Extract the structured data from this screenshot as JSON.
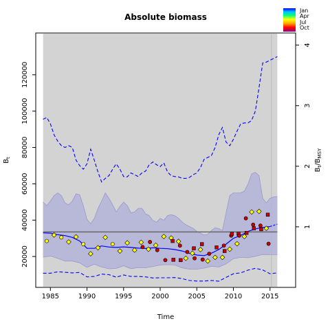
{
  "chart_data": {
    "type": "line",
    "title": "Absolute biomass",
    "xlabel": "Time",
    "ylabel": "B_t",
    "ylabel_right": "B_t/B_MSY",
    "xlim": [
      1983,
      2018.5
    ],
    "ylim": [
      3000,
      143000
    ],
    "ylim_right": [
      0,
      4.2
    ],
    "x_ticks": [
      1985,
      1990,
      1995,
      2000,
      2005,
      2010,
      2015
    ],
    "y_ticks": [
      20000,
      40000,
      60000,
      80000,
      100000,
      120000
    ],
    "y_ticks_right": [
      1,
      2,
      3,
      4
    ],
    "grid": false,
    "colors": {
      "shaded_panel": "#d3d3d3",
      "ci_band": "#b3b3d9",
      "ci_band_edge": "#9999cc",
      "median_line": "#0000ff",
      "ci_lines": "#0000ff",
      "bmsy_line": "#666666",
      "marker_edge": "#000000"
    },
    "legend": {
      "position": "top-right",
      "entries": [
        "Jan",
        "Apr",
        "Jul",
        "Oct"
      ],
      "gradient": [
        "#0000ff",
        "#00bfff",
        "#00ff80",
        "#ffff00",
        "#ffa500",
        "#ff0000",
        "#8b008b"
      ]
    },
    "shade_range_x": [
      1984,
      2016
    ],
    "forecast_start_x": 2015.2,
    "bmsy": 33500,
    "bmsy_ratio_scale": 33500,
    "median": {
      "x": [
        1984,
        1985,
        1986,
        1987,
        1988,
        1989,
        1990,
        1991,
        1992,
        1993,
        1994,
        1995,
        1996,
        1997,
        1998,
        1999,
        2000,
        2001,
        2002,
        2003,
        2004,
        2005,
        2006,
        2007,
        2008,
        2009,
        2010,
        2011,
        2012,
        2013,
        2014,
        2015
      ],
      "y": [
        33000,
        32800,
        32000,
        31500,
        30500,
        28500,
        24500,
        24500,
        25800,
        25200,
        25000,
        25300,
        25000,
        24600,
        24400,
        24800,
        24500,
        24300,
        23800,
        23000,
        21700,
        20800,
        20500,
        21800,
        23800,
        26800,
        30000,
        31600,
        33800,
        35200,
        36000,
        36500
      ]
    },
    "median_forecast": {
      "x": [
        2015,
        2016
      ],
      "y": [
        36500,
        37800
      ]
    },
    "ci_upper": {
      "x": [
        1984,
        1984.5,
        1985,
        1985.5,
        1986,
        1986.5,
        1987,
        1987.5,
        1988,
        1988.5,
        1989,
        1989.5,
        1990,
        1990.5,
        1991,
        1991.5,
        1992,
        1992.5,
        1993,
        1993.5,
        1994,
        1994.5,
        1995,
        1995.5,
        1996,
        1996.5,
        1997,
        1997.5,
        1998,
        1998.5,
        1999,
        1999.5,
        2000,
        2000.5,
        2001,
        2001.5,
        2002,
        2002.5,
        2003,
        2003.5,
        2004,
        2004.5,
        2005,
        2005.5,
        2006,
        2006.5,
        2007,
        2007.5,
        2008,
        2008.5,
        2009,
        2009.5,
        2010,
        2010.5,
        2011,
        2011.5,
        2012,
        2012.5,
        2013,
        2013.5,
        2014,
        2014.5,
        2015
      ],
      "y": [
        50000,
        48000,
        50500,
        53500,
        55000,
        53500,
        49500,
        48500,
        50500,
        54500,
        54000,
        48000,
        40500,
        38000,
        41000,
        46500,
        50500,
        55000,
        52000,
        48500,
        44500,
        47500,
        50000,
        48000,
        44000,
        44500,
        46500,
        46500,
        43500,
        42500,
        39800,
        38900,
        41000,
        40000,
        42500,
        43000,
        42500,
        41000,
        39000,
        37500,
        36500,
        35500,
        33800,
        32800,
        31800,
        32200,
        34300,
        35800,
        35300,
        34300,
        44000,
        53500,
        55000,
        55000,
        55000,
        56000,
        60000,
        65500,
        66300,
        64500,
        52000,
        49500,
        52000
      ]
    },
    "ci_upper_forecast": {
      "x": [
        2015,
        2015.5,
        2016
      ],
      "y": [
        52000,
        52800,
        53000
      ]
    },
    "ci_lower": {
      "x": [
        1984,
        1985,
        1986,
        1987,
        1988,
        1989,
        1990,
        1991,
        1992,
        1993,
        1994,
        1995,
        1996,
        1997,
        1998,
        1999,
        2000,
        2001,
        2002,
        2003,
        2004,
        2005,
        2006,
        2007,
        2008,
        2009,
        2010,
        2011,
        2012,
        2013,
        2014,
        2015
      ],
      "y": [
        19600,
        20300,
        19000,
        17500,
        17500,
        16500,
        14000,
        15800,
        14200,
        13200,
        13500,
        14900,
        13300,
        13900,
        13800,
        14500,
        15300,
        15500,
        15300,
        13700,
        13000,
        13000,
        13600,
        14600,
        14200,
        15900,
        18800,
        19500,
        19300,
        20100,
        21100,
        21000
      ]
    },
    "ci_lower_forecast": {
      "x": [
        2015,
        2016
      ],
      "y": [
        21000,
        21000
      ]
    },
    "ci_upper_dashed": {
      "x": [
        1984,
        1984.5,
        1985,
        1985.5,
        1986,
        1986.5,
        1987,
        1987.5,
        1988,
        1988.5,
        1989,
        1989.5,
        1990,
        1990.5,
        1991,
        1991.5,
        1992,
        1992.5,
        1993,
        1993.5,
        1994,
        1994.5,
        1995,
        1995.5,
        1996,
        1996.5,
        1997,
        1997.5,
        1998,
        1998.5,
        1999,
        1999.5,
        2000,
        2000.5,
        2001,
        2001.5,
        2002,
        2002.5,
        2003,
        2003.5,
        2004,
        2004.5,
        2005,
        2005.5,
        2006,
        2006.5,
        2007,
        2007.5,
        2008,
        2008.5,
        2009,
        2009.5,
        2010,
        2010.5,
        2011,
        2011.5,
        2012,
        2012.5,
        2013,
        2013.5,
        2014,
        2014.5,
        2015,
        2015.5,
        2016
      ],
      "y": [
        95500,
        96500,
        93000,
        87000,
        83500,
        81000,
        80000,
        81000,
        80000,
        73000,
        70000,
        68000,
        71000,
        79000,
        73000,
        66500,
        61000,
        63000,
        64500,
        68000,
        71000,
        68000,
        64000,
        63800,
        66000,
        65000,
        64000,
        66000,
        67000,
        70500,
        72000,
        70500,
        69500,
        71500,
        66500,
        64500,
        64000,
        63800,
        63000,
        63000,
        63500,
        65000,
        66000,
        69000,
        73500,
        74500,
        75500,
        80000,
        87000,
        91000,
        83000,
        81000,
        84500,
        89000,
        93000,
        93500,
        93500,
        95000,
        100000,
        113000,
        126500,
        127000,
        128000,
        129000,
        130000
      ]
    },
    "ci_lower_dashed": {
      "x": [
        1984,
        1985,
        1986,
        1987,
        1988,
        1989,
        1990,
        1991,
        1992,
        1993,
        1994,
        1995,
        1996,
        1997,
        1998,
        1999,
        2000,
        2001,
        2002,
        2003,
        2004,
        2005,
        2006,
        2007,
        2008,
        2009,
        2010,
        2011,
        2012,
        2013,
        2014,
        2015,
        2016
      ],
      "y": [
        10800,
        10800,
        11600,
        11300,
        11000,
        11200,
        8800,
        9000,
        10300,
        10000,
        8600,
        9800,
        9000,
        9000,
        8800,
        8200,
        8300,
        8300,
        8400,
        7800,
        6800,
        6500,
        6500,
        6800,
        6400,
        8500,
        10500,
        11000,
        12500,
        13500,
        12600,
        10500,
        11000
      ]
    },
    "observations": [
      {
        "x": 1984.5,
        "y": 28500,
        "shape": "circle",
        "color": "#ffff00"
      },
      {
        "x": 1985.5,
        "y": 31800,
        "shape": "diamond",
        "color": "#ffff00"
      },
      {
        "x": 1986.5,
        "y": 30500,
        "shape": "circle",
        "color": "#ffff00"
      },
      {
        "x": 1987.5,
        "y": 28000,
        "shape": "diamond",
        "color": "#ffff00"
      },
      {
        "x": 1988.5,
        "y": 30800,
        "shape": "diamond",
        "color": "#ffff00"
      },
      {
        "x": 1989.5,
        "y": 26800,
        "shape": "circle",
        "color": "#ffff00"
      },
      {
        "x": 1990.5,
        "y": 21500,
        "shape": "diamond",
        "color": "#ffff00"
      },
      {
        "x": 1991.5,
        "y": 24800,
        "shape": "diamond",
        "color": "#ffff00"
      },
      {
        "x": 1992.5,
        "y": 30500,
        "shape": "diamond",
        "color": "#ffff00"
      },
      {
        "x": 1993.5,
        "y": 26800,
        "shape": "circle",
        "color": "#ffff00"
      },
      {
        "x": 1994.5,
        "y": 23000,
        "shape": "diamond",
        "color": "#ffff00"
      },
      {
        "x": 1995.5,
        "y": 27500,
        "shape": "diamond",
        "color": "#ffff00"
      },
      {
        "x": 1996.5,
        "y": 23500,
        "shape": "diamond",
        "color": "#ffff00"
      },
      {
        "x": 1997.4,
        "y": 27800,
        "shape": "diamond",
        "color": "#ffff00"
      },
      {
        "x": 1997.6,
        "y": 25200,
        "shape": "circle",
        "color": "#cc0000"
      },
      {
        "x": 1998.4,
        "y": 24000,
        "shape": "diamond",
        "color": "#ffff00"
      },
      {
        "x": 1998.6,
        "y": 28000,
        "shape": "circle",
        "color": "#cc0000"
      },
      {
        "x": 1999.4,
        "y": 26200,
        "shape": "diamond",
        "color": "#ffff00"
      },
      {
        "x": 1999.6,
        "y": 23500,
        "shape": "circle",
        "color": "#cc0000"
      },
      {
        "x": 2000.5,
        "y": 31000,
        "shape": "diamond",
        "color": "#ffff00"
      },
      {
        "x": 2000.7,
        "y": 18000,
        "shape": "circle",
        "color": "#cc0000"
      },
      {
        "x": 2001.5,
        "y": 30200,
        "shape": "diamond",
        "color": "#ffff00"
      },
      {
        "x": 2001.7,
        "y": 28500,
        "shape": "square",
        "color": "#cc0000"
      },
      {
        "x": 2001.8,
        "y": 18200,
        "shape": "square",
        "color": "#cc0000"
      },
      {
        "x": 2002.5,
        "y": 28300,
        "shape": "diamond",
        "color": "#ffff00"
      },
      {
        "x": 2002.7,
        "y": 26000,
        "shape": "circle",
        "color": "#cc0000"
      },
      {
        "x": 2002.8,
        "y": 18000,
        "shape": "square",
        "color": "#cc0000"
      },
      {
        "x": 2003.5,
        "y": 19000,
        "shape": "diamond",
        "color": "#ffff00"
      },
      {
        "x": 2003.7,
        "y": 22500,
        "shape": "circle",
        "color": "#cc0000"
      },
      {
        "x": 2004.4,
        "y": 21800,
        "shape": "diamond",
        "color": "#ffff00"
      },
      {
        "x": 2004.6,
        "y": 24500,
        "shape": "square",
        "color": "#cc0000"
      },
      {
        "x": 2004.7,
        "y": 19000,
        "shape": "circle",
        "color": "#cc0000"
      },
      {
        "x": 2005.5,
        "y": 23800,
        "shape": "diamond",
        "color": "#ffff00"
      },
      {
        "x": 2005.7,
        "y": 26800,
        "shape": "square",
        "color": "#cc0000"
      },
      {
        "x": 2005.8,
        "y": 18300,
        "shape": "circle",
        "color": "#cc0000"
      },
      {
        "x": 2006.5,
        "y": 17500,
        "shape": "diamond",
        "color": "#ffff00"
      },
      {
        "x": 2006.7,
        "y": 21500,
        "shape": "circle",
        "color": "#cc0000"
      },
      {
        "x": 2007.5,
        "y": 19500,
        "shape": "diamond",
        "color": "#ffff00"
      },
      {
        "x": 2007.7,
        "y": 25000,
        "shape": "square",
        "color": "#cc0000"
      },
      {
        "x": 2008.5,
        "y": 19500,
        "shape": "diamond",
        "color": "#ffff00"
      },
      {
        "x": 2008.7,
        "y": 26000,
        "shape": "circle",
        "color": "#cc0000"
      },
      {
        "x": 2008.8,
        "y": 23000,
        "shape": "square",
        "color": "#cc0000"
      },
      {
        "x": 2009.5,
        "y": 24000,
        "shape": "diamond",
        "color": "#ffff00"
      },
      {
        "x": 2009.7,
        "y": 31500,
        "shape": "circle",
        "color": "#cc0000"
      },
      {
        "x": 2009.8,
        "y": 32500,
        "shape": "square",
        "color": "#cc0000"
      },
      {
        "x": 2010.5,
        "y": 27000,
        "shape": "diamond",
        "color": "#ffff00"
      },
      {
        "x": 2010.7,
        "y": 32500,
        "shape": "square",
        "color": "#cc0000"
      },
      {
        "x": 2010.8,
        "y": 31500,
        "shape": "circle",
        "color": "#cc0000"
      },
      {
        "x": 2011.5,
        "y": 31000,
        "shape": "diamond",
        "color": "#ffff00"
      },
      {
        "x": 2011.7,
        "y": 41000,
        "shape": "circle",
        "color": "#cc0000"
      },
      {
        "x": 2011.8,
        "y": 33000,
        "shape": "square",
        "color": "#cc0000"
      },
      {
        "x": 2012.5,
        "y": 44500,
        "shape": "diamond",
        "color": "#ffff00"
      },
      {
        "x": 2012.7,
        "y": 37500,
        "shape": "circle",
        "color": "#cc0000"
      },
      {
        "x": 2012.8,
        "y": 35500,
        "shape": "square",
        "color": "#cc0000"
      },
      {
        "x": 2013.5,
        "y": 44800,
        "shape": "diamond",
        "color": "#ffff00"
      },
      {
        "x": 2013.7,
        "y": 37000,
        "shape": "circle",
        "color": "#cc0000"
      },
      {
        "x": 2013.8,
        "y": 35000,
        "shape": "square",
        "color": "#cc0000"
      },
      {
        "x": 2014.5,
        "y": 35500,
        "shape": "diamond",
        "color": "#ffff00"
      },
      {
        "x": 2014.7,
        "y": 43000,
        "shape": "square",
        "color": "#cc0000"
      },
      {
        "x": 2014.8,
        "y": 27000,
        "shape": "circle",
        "color": "#cc0000"
      }
    ]
  }
}
